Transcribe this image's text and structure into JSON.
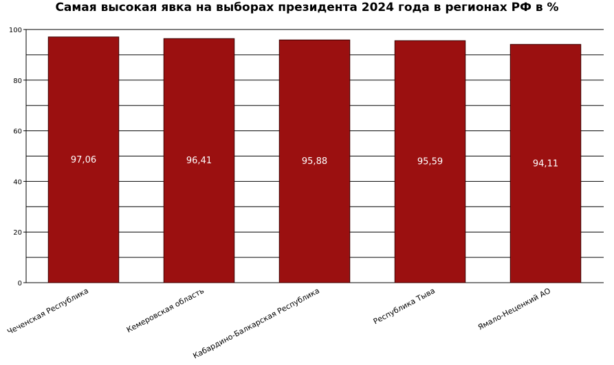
{
  "chart_data": {
    "type": "bar",
    "title": "Самая высокая явка на выборах президента 2024 года в регионах РФ в %",
    "xlabel": "",
    "ylabel": "",
    "categories": [
      "Чеченская Республика",
      "Кемеровская область",
      "Кабардино-Балкарская Республика",
      "Республика Тыва",
      "Ямало-Неценкий АО"
    ],
    "values": [
      97.06,
      96.41,
      95.88,
      95.59,
      94.11
    ],
    "value_labels": [
      "97,06",
      "96,41",
      "95,88",
      "95,59",
      "94,11"
    ],
    "ylim": [
      0,
      100
    ],
    "y_ticks": [
      0,
      20,
      40,
      60,
      80,
      100
    ],
    "y_tick_labels": [
      "0",
      "20",
      "40",
      "60",
      "80",
      "100"
    ],
    "minor_gridlines": [
      10,
      30,
      50,
      70,
      90
    ],
    "grid": true,
    "legend": "none",
    "bar_color": "#9b1010",
    "bar_edge_color": "#3a0000",
    "value_label_color": "#ffffff"
  }
}
